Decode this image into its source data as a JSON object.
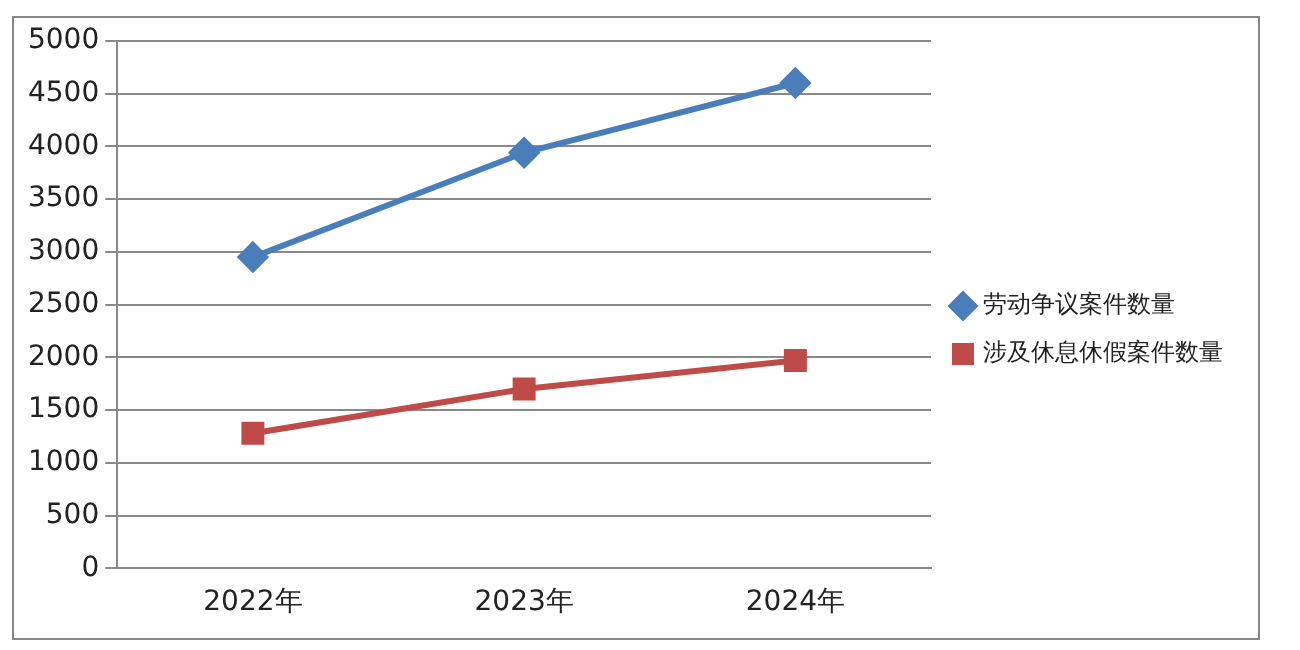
{
  "chart_data": {
    "type": "line",
    "categories": [
      "2022年",
      "2023年",
      "2024年"
    ],
    "series": [
      {
        "name": "劳动争议案件数量",
        "color": "#4a7ebb",
        "values": [
          2950,
          3940,
          4600
        ],
        "marker": "diamond"
      },
      {
        "name": "涉及休息休假案件数量",
        "color": "#be4b48",
        "values": [
          1280,
          1700,
          1970
        ],
        "marker": "square"
      }
    ],
    "ylim": [
      0,
      5000
    ],
    "yticks": [
      0,
      500,
      1000,
      1500,
      2000,
      2500,
      3000,
      3500,
      4000,
      4500,
      5000
    ],
    "grid": "y",
    "legend": "right",
    "line_style": "solid"
  }
}
